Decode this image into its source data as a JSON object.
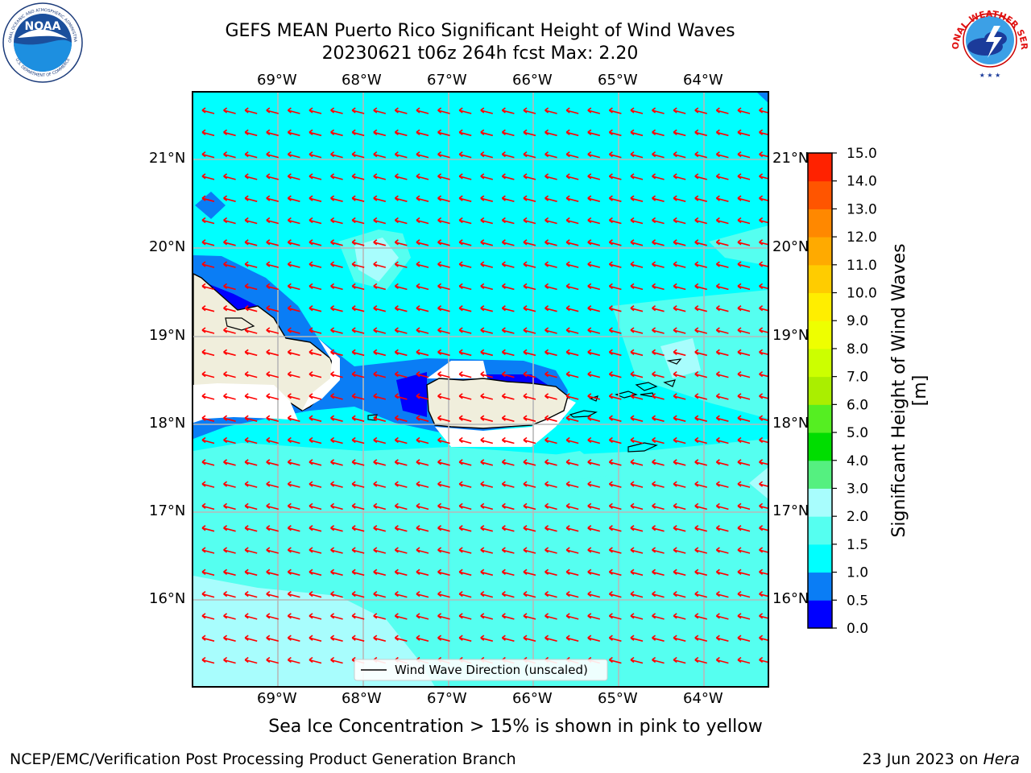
{
  "header": {
    "title_line1": "GEFS MEAN Puerto Rico Significant Height of Wind Waves",
    "title_line2": "20230621 t06z 264h fcst   Max: 2.20",
    "left_logo": "NOAA",
    "left_logo_ring_top": "NATIONAL OCEANIC AND ATMOSPHERIC ADMINISTRATION",
    "left_logo_ring_bottom": "U.S. DEPARTMENT OF COMMERCE",
    "right_logo_ring_top": "NATIONAL WEATHER SERVICE"
  },
  "map": {
    "lon_labels": [
      "69°W",
      "68°W",
      "67°W",
      "66°W",
      "65°W",
      "64°W"
    ],
    "lat_labels": [
      "21°N",
      "20°N",
      "19°N",
      "18°N",
      "17°N",
      "16°N"
    ],
    "legend_label": "Wind Wave Direction (unscaled)",
    "arrow_color": "#ff0000",
    "land_color": "#f0eedc"
  },
  "colorbar": {
    "label": "Significant Height of Wind Waves [m]",
    "tick_labels": [
      "0.0",
      "0.5",
      "1.0",
      "1.5",
      "2.0",
      "3.0",
      "4.0",
      "5.0",
      "6.0",
      "7.0",
      "8.0",
      "9.0",
      "10.0",
      "11.0",
      "12.0",
      "13.0",
      "14.0",
      "15.0"
    ],
    "colors": [
      "#0000ff",
      "#0a7df5",
      "#00ffff",
      "#55fff0",
      "#a8fdfd",
      "#55f080",
      "#00dd00",
      "#55ee22",
      "#aaee00",
      "#ccff00",
      "#eeff00",
      "#ffee00",
      "#ffcc00",
      "#ffaa00",
      "#ff8800",
      "#ff5500",
      "#ff2200"
    ]
  },
  "subtitle": "Sea Ice Concentration > 15% is shown in pink to yellow",
  "footer": {
    "left": "NCEP/EMC/Verification Post Processing Product Generation Branch",
    "right_prefix": "23 Jun 2023 on ",
    "right_host": "Hera"
  }
}
